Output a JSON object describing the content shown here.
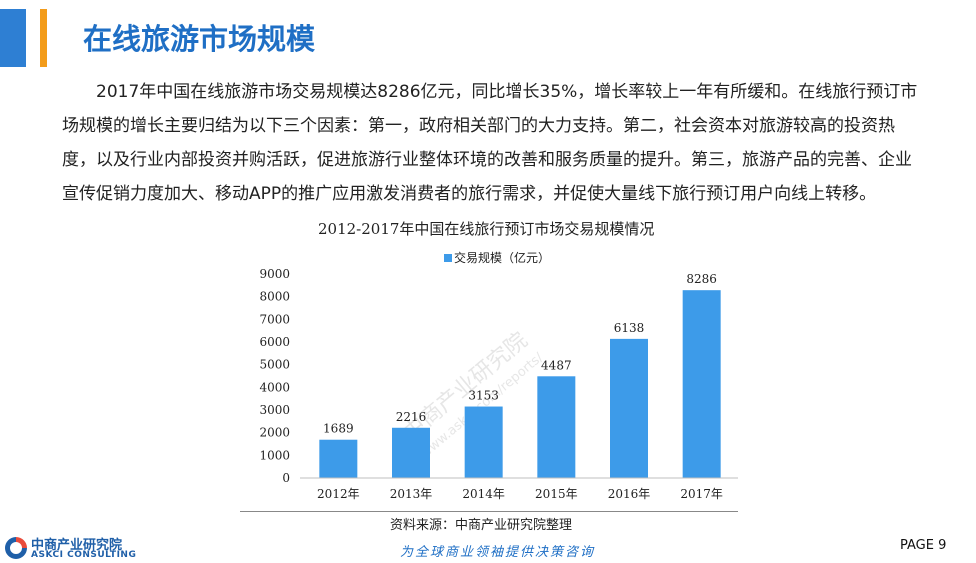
{
  "header": {
    "title": "在线旅游市场规模"
  },
  "body_text": "2017年中国在线旅游市场交易规模达8286亿元，同比增长35%，增长率较上一年有所缓和。在线旅行预订市场规模的增长主要归结为以下三个因素：第一，政府相关部门的大力支持。第二，社会资本对旅游较高的投资热度，以及行业内部投资并购活跃，促进旅游行业整体环境的改善和服务质量的提升。第三，旅游产品的完善、企业宣传促销力度加大、移动APP的推广应用激发消费者的旅行需求，并促使大量线下旅行预订用户向线上转移。",
  "chart_data": {
    "type": "bar",
    "title": "2012-2017年中国在线旅行预订市场交易规模情况",
    "categories": [
      "2012年",
      "2013年",
      "2014年",
      "2015年",
      "2016年",
      "2017年"
    ],
    "series": [
      {
        "name": "交易规模（亿元）",
        "values": [
          1689,
          2216,
          3153,
          4487,
          6138,
          8286
        ]
      }
    ],
    "ylim": [
      0,
      9000
    ],
    "yticks": [
      0,
      1000,
      2000,
      3000,
      4000,
      5000,
      6000,
      7000,
      8000,
      9000
    ],
    "xlabel": "",
    "ylabel": "",
    "legend": "top",
    "grid": false,
    "bar_color": "#3d9be9",
    "data_labels": true
  },
  "source_note": "资料来源：中商产业研究院整理",
  "watermark": {
    "name": "中商产业研究院",
    "url": "www.askci.com/reports/"
  },
  "footer": {
    "logo_name": "中商产业研究院",
    "logo_en": "ASKCI CONSULTING",
    "slogan": "为全球商业领袖提供决策咨询",
    "page_label": "PAGE 9"
  },
  "colors": {
    "title_blue": "#1f6fc5",
    "accent_blue": "#2e7fd3",
    "accent_orange": "#f39c1b"
  }
}
